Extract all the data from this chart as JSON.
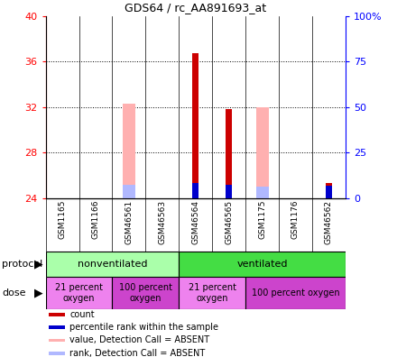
{
  "title": "GDS64 / rc_AA891693_at",
  "samples": [
    "GSM1165",
    "GSM1166",
    "GSM46561",
    "GSM46563",
    "GSM46564",
    "GSM46565",
    "GSM1175",
    "GSM1176",
    "GSM46562"
  ],
  "ylim_left": [
    24,
    40
  ],
  "ylim_right": [
    0,
    100
  ],
  "yticks_left": [
    24,
    28,
    32,
    36,
    40
  ],
  "yticks_right": [
    0,
    25,
    50,
    75,
    100
  ],
  "bars": {
    "count_color": "#cc0000",
    "rank_color": "#0000cc",
    "value_absent_color": "#ffb0b0",
    "rank_absent_color": "#b0b8ff"
  },
  "bar_data": [
    {
      "sample": "GSM1165",
      "count": null,
      "rank": null,
      "value_absent": null,
      "rank_absent": null
    },
    {
      "sample": "GSM1166",
      "count": null,
      "rank": null,
      "value_absent": null,
      "rank_absent": null
    },
    {
      "sample": "GSM46561",
      "count": null,
      "rank": null,
      "value_absent": 32.3,
      "rank_absent": 25.2
    },
    {
      "sample": "GSM46563",
      "count": null,
      "rank": null,
      "value_absent": null,
      "rank_absent": null
    },
    {
      "sample": "GSM46564",
      "count": 36.7,
      "rank": 25.3,
      "value_absent": null,
      "rank_absent": null
    },
    {
      "sample": "GSM46565",
      "count": 31.8,
      "rank": 25.2,
      "value_absent": null,
      "rank_absent": null
    },
    {
      "sample": "GSM1175",
      "count": null,
      "rank": null,
      "value_absent": 32.0,
      "rank_absent": 25.0
    },
    {
      "sample": "GSM1176",
      "count": null,
      "rank": null,
      "value_absent": null,
      "rank_absent": null
    },
    {
      "sample": "GSM46562",
      "count": 25.3,
      "rank": 25.1,
      "value_absent": null,
      "rank_absent": null
    }
  ],
  "protocol_groups": [
    {
      "label": "nonventilated",
      "start": 0,
      "end": 4,
      "color": "#aaffaa"
    },
    {
      "label": "ventilated",
      "start": 4,
      "end": 9,
      "color": "#44dd44"
    }
  ],
  "dose_groups": [
    {
      "label": "21 percent\noxygen",
      "start": 0,
      "end": 2,
      "color": "#ee82ee"
    },
    {
      "label": "100 percent\noxygen",
      "start": 2,
      "end": 4,
      "color": "#cc44cc"
    },
    {
      "label": "21 percent\noxygen",
      "start": 4,
      "end": 6,
      "color": "#ee82ee"
    },
    {
      "label": "100 percent oxygen",
      "start": 6,
      "end": 9,
      "color": "#cc44cc"
    }
  ],
  "legend_items": [
    {
      "color": "#cc0000",
      "label": "count"
    },
    {
      "color": "#0000cc",
      "label": "percentile rank within the sample"
    },
    {
      "color": "#ffb0b0",
      "label": "value, Detection Call = ABSENT"
    },
    {
      "color": "#b0b8ff",
      "label": "rank, Detection Call = ABSENT"
    }
  ],
  "background_color": "#ffffff",
  "plot_bg_color": "#ffffff",
  "tick_label_area_color": "#cccccc"
}
